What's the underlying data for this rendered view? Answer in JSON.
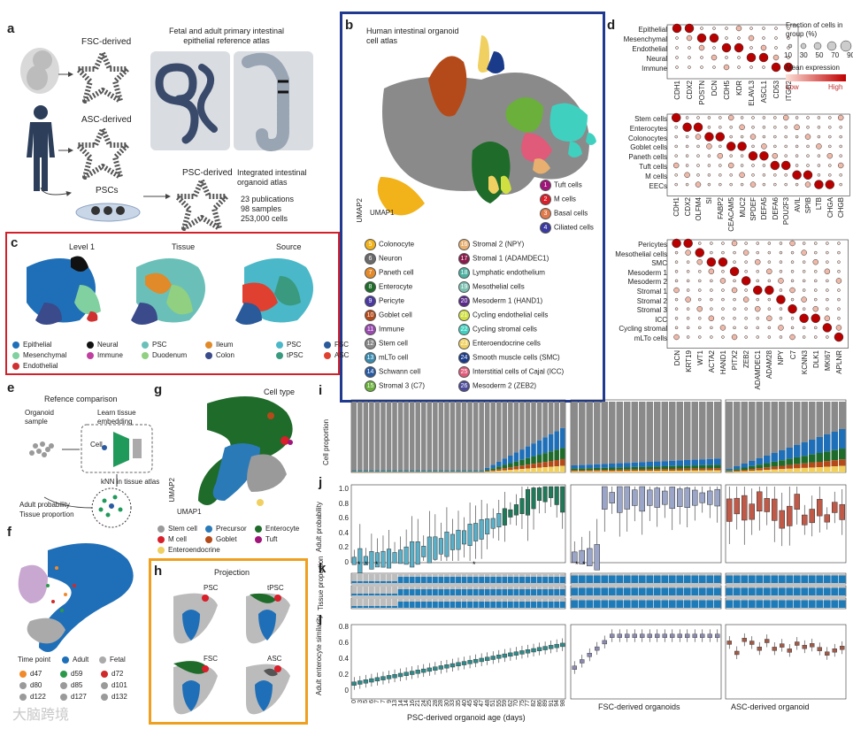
{
  "panels": {
    "a": "a",
    "b": "b",
    "c": "c",
    "d": "d",
    "e": "e",
    "f": "f",
    "g": "g",
    "h": "h",
    "i": "i",
    "j": "j",
    "k": "k",
    "l": "l"
  },
  "a": {
    "fsc": "FSC-derived",
    "asc": "ASC-derived",
    "pscs": "PSCs",
    "psc_derived": "PSC-derived",
    "reference_title": "Fetal and adult primary intestinal epithelial reference atlas",
    "integrated_title": "Integrated intestinal organoid atlas",
    "stats": [
      "23 publications",
      "98 samples",
      "253,000 cells"
    ]
  },
  "b": {
    "title": "Human intestinal organoid cell atlas",
    "umap1": "UMAP1",
    "umap2": "UMAP2",
    "clusters": [
      {
        "n": "1",
        "label": "Tuft cells",
        "color": "#a0157a"
      },
      {
        "n": "2",
        "label": "M cells",
        "color": "#d81f2a"
      },
      {
        "n": "3",
        "label": "Basal cells",
        "color": "#e07a4a"
      },
      {
        "n": "4",
        "label": "Ciliated cells",
        "color": "#3a3aa0"
      },
      {
        "n": "5",
        "label": "Colonocyte",
        "color": "#f2b21a"
      },
      {
        "n": "6",
        "label": "Neuron",
        "color": "#6a6a6a"
      },
      {
        "n": "7",
        "label": "Paneth cell",
        "color": "#e48a2a"
      },
      {
        "n": "8",
        "label": "Enterocyte",
        "color": "#1f6b2a"
      },
      {
        "n": "9",
        "label": "Pericyte",
        "color": "#4a3aa0"
      },
      {
        "n": "10",
        "label": "Goblet cell",
        "color": "#b44a1a"
      },
      {
        "n": "11",
        "label": "Immune",
        "color": "#9a4ab0"
      },
      {
        "n": "12",
        "label": "Stem cell",
        "color": "#8a8a8a"
      },
      {
        "n": "13",
        "label": "mLTo cell",
        "color": "#3a8ab0"
      },
      {
        "n": "14",
        "label": "Schwann cell",
        "color": "#2a5aa0"
      },
      {
        "n": "15",
        "label": "Stromal 3 (C7)",
        "color": "#6ab03a"
      },
      {
        "n": "16",
        "label": "Stromal 2 (NPY)",
        "color": "#e8b070"
      },
      {
        "n": "17",
        "label": "Stromal 1 (ADAMDEC1)",
        "color": "#8a1a4a"
      },
      {
        "n": "18",
        "label": "Lymphatic endothelium",
        "color": "#4ab0a0"
      },
      {
        "n": "19",
        "label": "Mesothelial cells",
        "color": "#7ac0b0"
      },
      {
        "n": "20",
        "label": "Mesoderm 1 (HAND1)",
        "color": "#5a2a8a"
      },
      {
        "n": "21",
        "label": "Cycling endothelial cells",
        "color": "#d0e040"
      },
      {
        "n": "22",
        "label": "Cycling stromal cells",
        "color": "#40d0c0"
      },
      {
        "n": "23",
        "label": "Enteroendocrine cells",
        "color": "#f0d060"
      },
      {
        "n": "24",
        "label": "Smooth muscle cells (SMC)",
        "color": "#1a3a8a"
      },
      {
        "n": "25",
        "label": "Interstitial cells of Cajal (ICC)",
        "color": "#e05a7a"
      },
      {
        "n": "26",
        "label": "Mesoderm 2 (ZEB2)",
        "color": "#4a4a9a"
      }
    ]
  },
  "c": {
    "titles": [
      "Level 1",
      "Tissue",
      "Source"
    ],
    "legend": [
      {
        "label": "Epithelial",
        "color": "#1f6fb8"
      },
      {
        "label": "Neural",
        "color": "#111111"
      },
      {
        "label": "PSC",
        "color": "#6ac0b8"
      },
      {
        "label": "Ileum",
        "color": "#e08a2a"
      },
      {
        "label": "PSC",
        "color": "#4ab8c8"
      },
      {
        "label": "FSC",
        "color": "#2a5a9a"
      },
      {
        "label": "Mesenchymal",
        "color": "#80d0a0"
      },
      {
        "label": "Immune",
        "color": "#c040a0"
      },
      {
        "label": "Duodenum",
        "color": "#90d080"
      },
      {
        "label": "Colon",
        "color": "#3a4a8a"
      },
      {
        "label": "tPSC",
        "color": "#3a9a80"
      },
      {
        "label": "ASC",
        "color": "#e04030"
      },
      {
        "label": "Endothelial",
        "color": "#d03030"
      }
    ]
  },
  "d": {
    "top_rows": [
      "Epithelial",
      "Mesenchymal",
      "Endothelial",
      "Neural",
      "Immune"
    ],
    "top_cols": [
      "CDH1",
      "CDX2",
      "POSTN",
      "DCN",
      "CDH5",
      "KDR",
      "ELAVL3",
      "ASCL1",
      "CD53",
      "ITGB2"
    ],
    "mid_rows": [
      "Stem cells",
      "Enterocytes",
      "Colonocytes",
      "Goblet cells",
      "Paneth cells",
      "Tuft cells",
      "M cells",
      "EECs"
    ],
    "mid_cols": [
      "CDH1",
      "CDX2",
      "OLFM4",
      "SI",
      "FABP2",
      "CEACAM5",
      "MUC2",
      "SPDEF",
      "DEFA5",
      "DEFA6",
      "POU2F3",
      "AVIL",
      "SPIB",
      "LTB",
      "CHGA",
      "CHGB"
    ],
    "bot_rows": [
      "Pericytes",
      "Mesothelial cells",
      "SMC",
      "Mesoderm 1",
      "Mesoderm 2",
      "Stromal 1",
      "Stromal 2",
      "Stromal 3",
      "ICC",
      "Cycling stromal",
      "mLTo cells"
    ],
    "bot_cols": [
      "DCN",
      "KRT19",
      "WT1",
      "ACTA2",
      "HAND1",
      "PITX2",
      "ZEB2",
      "ADAMDEC1",
      "ADAM28",
      "NPY",
      "C7",
      "KCNN3",
      "DLK1",
      "MKI67",
      "APLNR"
    ],
    "size_title": "Fraction of cells in group (%)",
    "size_ticks": [
      "10",
      "30",
      "50",
      "70",
      "90"
    ],
    "expr_title": "Mean expression",
    "low": "Low",
    "high": "High"
  },
  "e": {
    "title": "Refence comparison",
    "organoid": "Organoid sample",
    "learn": "Learn tissue embedding",
    "cell": "Cell",
    "knn": "kNN in tissue atlas",
    "out1": "Adult probability",
    "out2": "Tissue proportion"
  },
  "f": {
    "legend_title": "Time point",
    "adult": "Adult",
    "fetal": "Fetal",
    "points": [
      {
        "label": "d47",
        "color": "#f08a2a"
      },
      {
        "label": "d59",
        "color": "#2a9a4a"
      },
      {
        "label": "d72",
        "color": "#d02a2a"
      },
      {
        "label": "d80",
        "color": "#9a9a9a"
      },
      {
        "label": "d85",
        "color": "#9a9a9a"
      },
      {
        "label": "d101",
        "color": "#9a9a9a"
      },
      {
        "label": "d122",
        "color": "#9a9a9a"
      },
      {
        "label": "d127",
        "color": "#9a9a9a"
      },
      {
        "label": "d132",
        "color": "#9a9a9a"
      }
    ]
  },
  "g": {
    "title": "Cell type",
    "umap1": "UMAP1",
    "umap2": "UMAP2",
    "legend": [
      {
        "label": "Stem cell",
        "color": "#9a9a9a"
      },
      {
        "label": "Precursor",
        "color": "#2a7ab8"
      },
      {
        "label": "Enterocyte",
        "color": "#1f6b2a"
      },
      {
        "label": "M cell",
        "color": "#d81f2a"
      },
      {
        "label": "Goblet",
        "color": "#b44a1a"
      },
      {
        "label": "Tuft",
        "color": "#a0157a"
      },
      {
        "label": "Enteroendocrine",
        "color": "#f0d060"
      }
    ]
  },
  "h": {
    "title": "Projection",
    "sub": [
      "PSC",
      "tPSC",
      "FSC",
      "ASC"
    ]
  },
  "ijkl": {
    "i_ylabel": "Cell proportion",
    "j_ylabel": "Adult probability",
    "k_ylabel": "Tissue proportion",
    "l_ylabel": "Adult enterocyte similarity",
    "yticks_j": [
      "1.0",
      "0.8",
      "0.6",
      "0.4",
      "0.2",
      "0"
    ],
    "yticks_l": [
      "0.8",
      "0.6",
      "0.4",
      "0.2",
      "0"
    ],
    "xlabel_psc": "PSC-derived organoid age (days)",
    "xlabel_fsc": "FSC-derived organoids",
    "xlabel_asc": "ASC-derived organoid",
    "psc_days": [
      "0",
      "3",
      "5",
      "6",
      "7",
      "7",
      "9",
      "13",
      "14",
      "14",
      "16",
      "21",
      "24",
      "25",
      "28",
      "28",
      "30",
      "33",
      "35",
      "40",
      "45",
      "46",
      "47",
      "48",
      "51",
      "55",
      "59",
      "62",
      "70",
      "75",
      "77",
      "82",
      "86",
      "89",
      "91",
      "94",
      "98"
    ]
  },
  "watermark": "大脑跨境"
}
